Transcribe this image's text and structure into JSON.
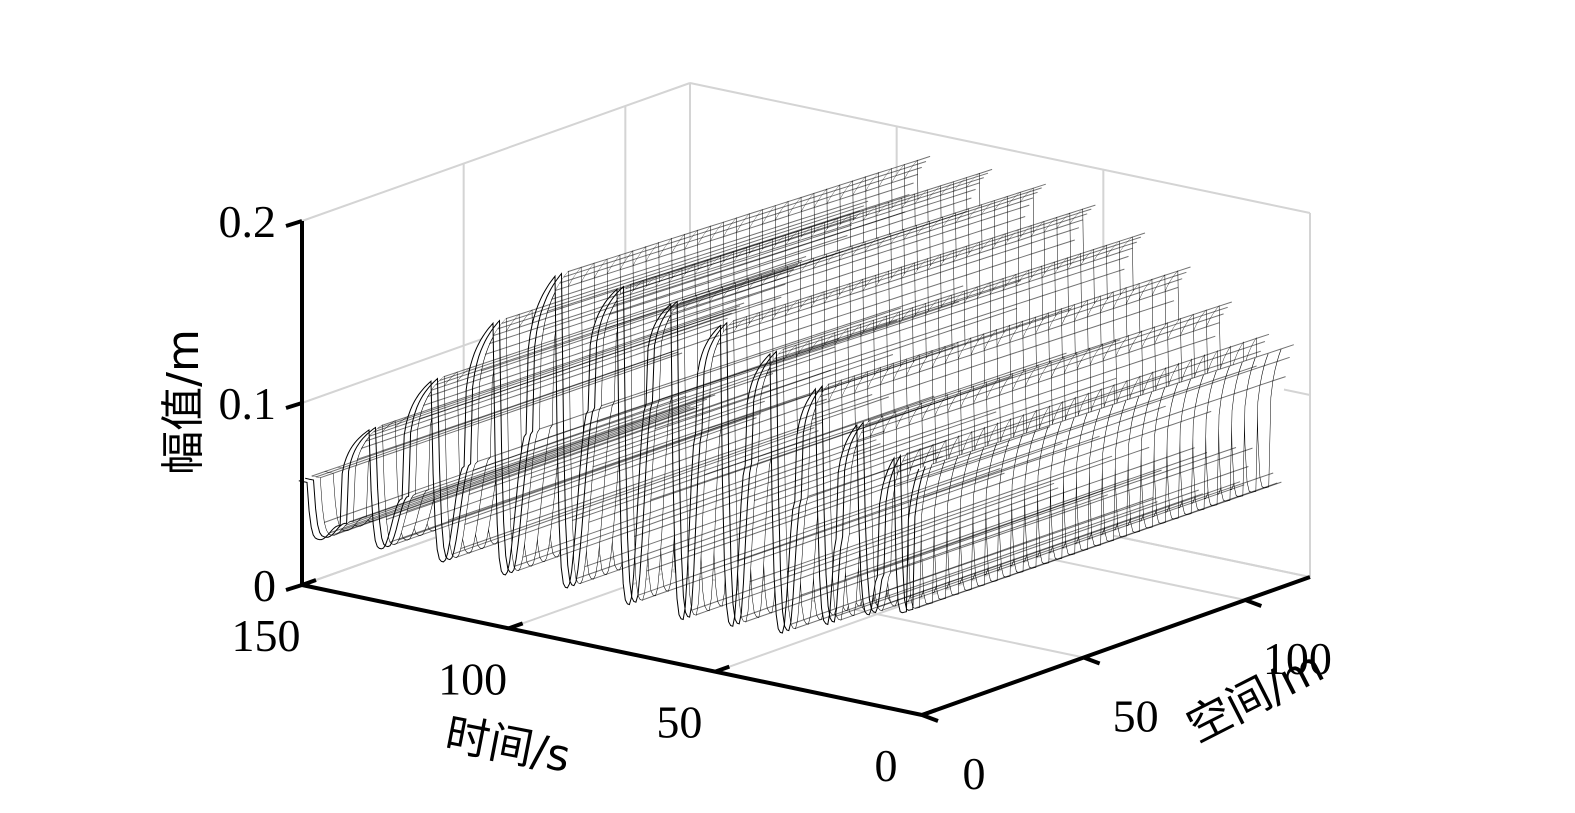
{
  "chart_data": {
    "type": "surface",
    "title": "",
    "colors": {
      "mesh": "#000000",
      "grid": "#d4d4d4",
      "background": "#ffffff"
    },
    "axes": {
      "x": {
        "label": "时间/s",
        "range": [
          0,
          150
        ],
        "ticks": [
          0,
          50,
          100,
          150
        ],
        "tick_labels": [
          "0",
          "50",
          "100",
          "150"
        ]
      },
      "y": {
        "label": "空间/m",
        "range": [
          0,
          120
        ],
        "ticks": [
          0,
          50,
          100
        ],
        "tick_labels": [
          "0",
          "50",
          "100"
        ]
      },
      "z": {
        "label": "幅值/m",
        "range": [
          0,
          0.2
        ],
        "ticks": [
          0,
          0.1,
          0.2
        ],
        "tick_labels": [
          "0",
          "0.1",
          "0.2"
        ]
      }
    },
    "grid": true,
    "surface": {
      "description_of_values": "amplitude vs time, nearly constant along space",
      "peaks": [
        {
          "time": 148,
          "amplitude": 0.058
        },
        {
          "time": 133,
          "amplitude": 0.094
        },
        {
          "time": 118,
          "amplitude": 0.128
        },
        {
          "time": 103,
          "amplitude": 0.167
        },
        {
          "time": 88,
          "amplitude": 0.2
        },
        {
          "time": 73,
          "amplitude": 0.2
        },
        {
          "time": 60,
          "amplitude": 0.198
        },
        {
          "time": 48,
          "amplitude": 0.192
        },
        {
          "time": 36,
          "amplitude": 0.182
        },
        {
          "time": 25,
          "amplitude": 0.168
        },
        {
          "time": 15,
          "amplitude": 0.153
        },
        {
          "time": 6,
          "amplitude": 0.139
        },
        {
          "time": 0,
          "amplitude": 0.136
        }
      ],
      "humps": [
        {
          "time": 140,
          "amplitude": 0.038
        },
        {
          "time": 125,
          "amplitude": 0.06
        },
        {
          "time": 110,
          "amplitude": 0.085
        },
        {
          "time": 95,
          "amplitude": 0.11
        },
        {
          "time": 80,
          "amplitude": 0.13
        },
        {
          "time": 66,
          "amplitude": 0.14
        },
        {
          "time": 54,
          "amplitude": 0.13
        },
        {
          "time": 42,
          "amplitude": 0.118
        },
        {
          "time": 30,
          "amplitude": 0.104
        },
        {
          "time": 20,
          "amplitude": 0.088
        },
        {
          "time": 10,
          "amplitude": 0.072
        },
        {
          "time": 3,
          "amplitude": 0.056
        }
      ],
      "troughs": [
        {
          "time": 145,
          "amplitude": 0.028
        },
        {
          "time": 130,
          "amplitude": 0.03
        },
        {
          "time": 115,
          "amplitude": 0.03
        },
        {
          "time": 100,
          "amplitude": 0.03
        },
        {
          "time": 85,
          "amplitude": 0.03
        },
        {
          "time": 70,
          "amplitude": 0.028
        },
        {
          "time": 57,
          "amplitude": 0.026
        },
        {
          "time": 45,
          "amplitude": 0.028
        },
        {
          "time": 33,
          "amplitude": 0.03
        },
        {
          "time": 22,
          "amplitude": 0.04
        },
        {
          "time": 12,
          "amplitude": 0.05
        },
        {
          "time": 4,
          "amplitude": 0.055
        }
      ]
    }
  }
}
